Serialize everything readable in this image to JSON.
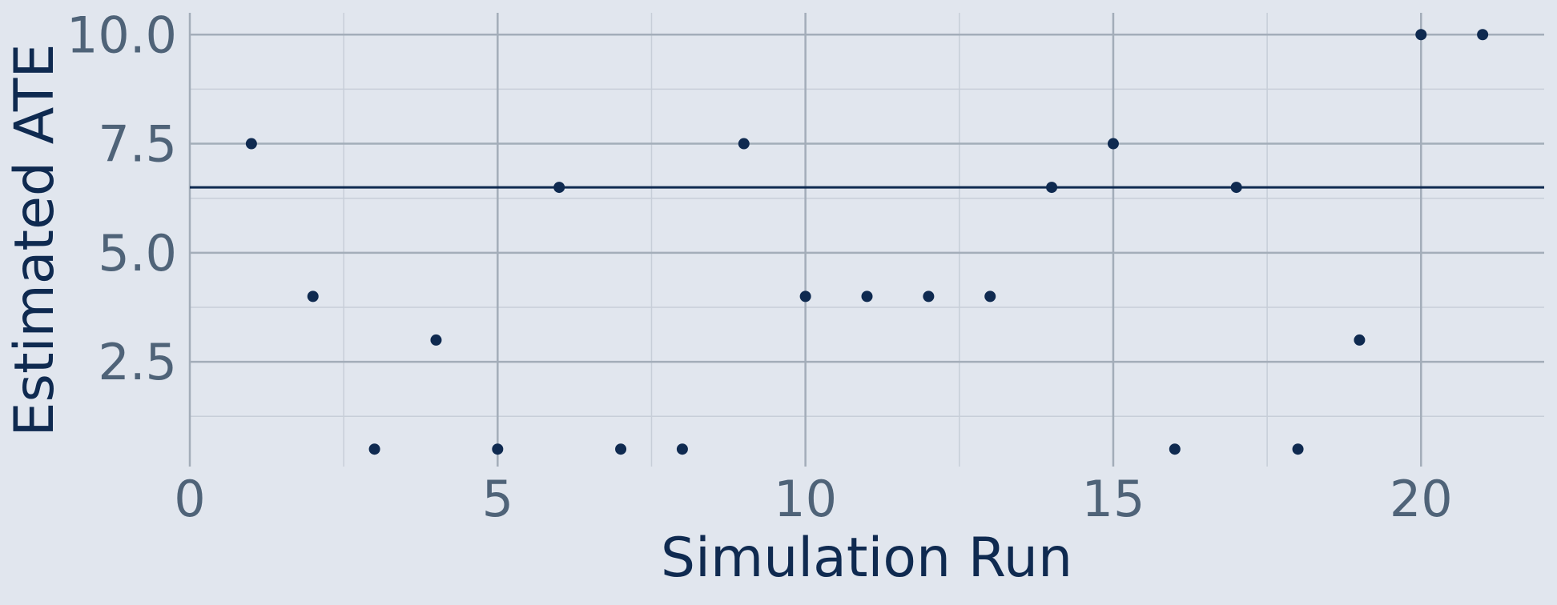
{
  "chart_data": {
    "type": "scatter",
    "title": "",
    "xlabel": "Simulation Run",
    "ylabel": "Estimated ATE",
    "xlim": [
      0,
      22
    ],
    "ylim": [
      0.1,
      10.5
    ],
    "x_ticks": [
      0,
      5,
      10,
      15,
      20
    ],
    "x_tick_labels": [
      "0",
      "5",
      "10",
      "15",
      "20"
    ],
    "x_minor_ticks": [
      2.5,
      7.5,
      12.5,
      17.5
    ],
    "y_ticks": [
      2.5,
      5.0,
      7.5,
      10.0
    ],
    "y_tick_labels": [
      "2.5",
      "5.0",
      "7.5",
      "10.0"
    ],
    "y_minor_ticks": [
      1.25,
      3.75,
      6.25,
      8.75
    ],
    "grid": true,
    "points": [
      {
        "x": 1,
        "y": 7.5
      },
      {
        "x": 2,
        "y": 4.0
      },
      {
        "x": 3,
        "y": 0.5
      },
      {
        "x": 4,
        "y": 3.0
      },
      {
        "x": 5,
        "y": 0.5
      },
      {
        "x": 6,
        "y": 6.5
      },
      {
        "x": 7,
        "y": 0.5
      },
      {
        "x": 8,
        "y": 0.5
      },
      {
        "x": 9,
        "y": 7.5
      },
      {
        "x": 10,
        "y": 4.0
      },
      {
        "x": 11,
        "y": 4.0
      },
      {
        "x": 12,
        "y": 4.0
      },
      {
        "x": 13,
        "y": 4.0
      },
      {
        "x": 14,
        "y": 6.5
      },
      {
        "x": 15,
        "y": 7.5
      },
      {
        "x": 16,
        "y": 0.5
      },
      {
        "x": 17,
        "y": 6.5
      },
      {
        "x": 18,
        "y": 0.5
      },
      {
        "x": 19,
        "y": 3.0
      },
      {
        "x": 20,
        "y": 10.0
      },
      {
        "x": 21,
        "y": 10.0
      }
    ],
    "reference_line": {
      "y": 6.5,
      "orientation": "horizontal"
    },
    "colors": {
      "background": "#e1e6ee",
      "major_grid": "#a3adb9",
      "minor_grid": "#c7ced8",
      "points": "#0f2a50",
      "reference_line": "#0f2a50",
      "tick_labels": "#4f6378",
      "axis_titles": "#0f2a50"
    }
  }
}
